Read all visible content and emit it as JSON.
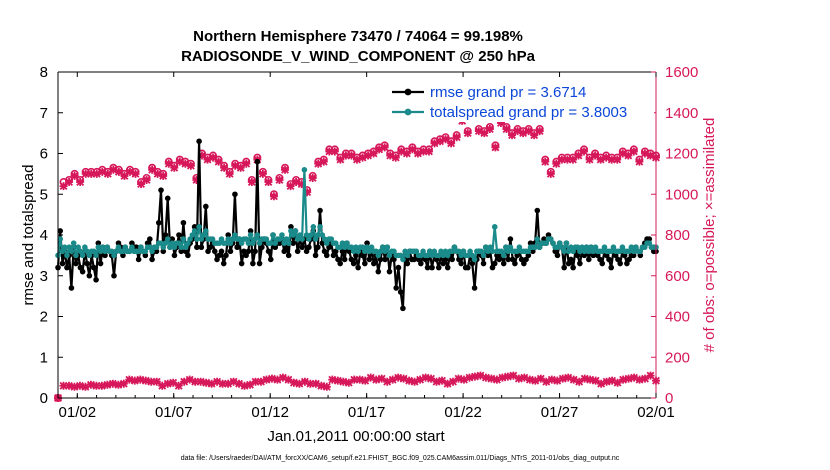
{
  "chart_data": {
    "type": "line",
    "title_line1": "Northern Hemisphere 73470 / 74064 = 99.198%",
    "title_line2": "RADIOSONDE_V_WIND_COMPONENT @ 250 hPa",
    "xlabel": "Jan.01,2011 00:00:00 start",
    "ylabel_left": "rmse and totalspread",
    "ylabel_right": "# of obs: o=possible; ×=assimilated",
    "footnote": "data file: /Users/raeder/DAI/ATM_forcXX/CAM6_setup/f.e21.FHIST_BGC.f09_025.CAM6assim.011/Diags_NTrS_2011-01/obs_diag_output.nc",
    "xlim": [
      0,
      31
    ],
    "ylim_left": [
      0,
      8
    ],
    "ylim_right": [
      0,
      1600
    ],
    "x_ticks": [
      {
        "v": 1,
        "label": "01/02"
      },
      {
        "v": 6,
        "label": "01/07"
      },
      {
        "v": 11,
        "label": "01/12"
      },
      {
        "v": 16,
        "label": "01/17"
      },
      {
        "v": 21,
        "label": "01/22"
      },
      {
        "v": 26,
        "label": "01/27"
      },
      {
        "v": 31,
        "label": "02/01"
      }
    ],
    "y_ticks_left": [
      "0",
      "1",
      "2",
      "3",
      "4",
      "5",
      "6",
      "7",
      "8"
    ],
    "y_ticks_right": [
      "0",
      "200",
      "400",
      "600",
      "800",
      "1000",
      "1200",
      "1400",
      "1600"
    ],
    "legend": [
      {
        "label": "rmse grand pr = 3.6714",
        "color": "#000000"
      },
      {
        "label": "totalspread grand pr = 3.8003",
        "color": "#1a8a8a"
      }
    ],
    "colors": {
      "rmse": "#000000",
      "spread": "#1a8a8a",
      "obs": "#d6185a",
      "axis_right": "#d6185a"
    },
    "series": [
      {
        "name": "rmse",
        "axis": "left",
        "values": [
          3.2,
          4.1,
          3.3,
          3.6,
          3.2,
          3.5,
          2.7,
          3.7,
          3.3,
          3.5,
          3.2,
          3.1,
          3.6,
          3.3,
          3.0,
          3.5,
          3.2,
          2.9,
          3.8,
          3.3,
          3.7,
          3.5,
          3.7,
          3.6,
          3.5,
          3.0,
          3.6,
          3.8,
          3.7,
          3.5,
          3.7,
          3.6,
          3.6,
          3.8,
          3.7,
          3.7,
          3.4,
          3.7,
          3.6,
          3.5,
          3.8,
          3.9,
          3.4,
          3.6,
          3.6,
          4.3,
          5.1,
          3.6,
          4.0,
          4.9,
          3.7,
          3.9,
          3.5,
          3.7,
          4.0,
          3.6,
          4.3,
          3.6,
          3.5,
          3.8,
          3.9,
          4.2,
          3.7,
          6.3,
          3.7,
          3.9,
          4.7,
          3.6,
          3.7,
          3.8,
          3.6,
          3.4,
          3.5,
          3.6,
          3.3,
          3.5,
          4.0,
          3.6,
          3.8,
          5.0,
          3.7,
          3.9,
          3.3,
          3.6,
          3.5,
          3.6,
          4.1,
          3.3,
          3.6,
          5.8,
          3.3,
          3.7,
          3.9,
          3.8,
          3.6,
          3.4,
          4.0,
          3.7,
          3.8,
          3.8,
          3.9,
          3.6,
          3.7,
          3.5,
          4.2,
          3.8,
          4.1,
          3.6,
          3.9,
          3.7,
          3.9,
          3.6,
          3.7,
          3.9,
          4.1,
          3.5,
          3.7,
          4.6,
          3.8,
          3.6,
          3.5,
          3.7,
          3.8,
          3.5,
          3.6,
          3.4,
          3.3,
          3.6,
          3.4,
          3.8,
          3.6,
          3.4,
          3.3,
          3.5,
          3.2,
          3.6,
          3.5,
          3.3,
          3.8,
          3.4,
          3.6,
          3.3,
          3.5,
          3.1,
          3.4,
          3.7,
          3.4,
          3.7,
          3.1,
          3.5,
          3.4,
          2.7,
          3.2,
          2.6,
          2.2,
          3.5,
          3.3,
          3.6,
          3.4,
          3.4,
          3.5,
          3.4,
          3.3,
          3.5,
          3.4,
          3.2,
          3.6,
          3.2,
          3.5,
          3.4,
          3.2,
          3.5,
          3.3,
          3.4,
          3.2,
          3.5,
          3.4,
          3.7,
          3.6,
          3.4,
          3.3,
          3.6,
          3.2,
          3.2,
          3.5,
          3.3,
          2.7,
          3.4,
          3.6,
          3.5,
          3.3,
          3.7,
          3.5,
          3.6,
          3.2,
          3.3,
          3.5,
          3.4,
          3.5,
          3.3,
          3.7,
          3.4,
          3.9,
          3.4,
          3.3,
          3.5,
          3.6,
          3.4,
          3.3,
          3.4,
          3.5,
          3.8,
          3.6,
          3.8,
          4.6,
          3.7,
          3.8,
          3.9,
          3.8,
          4.0,
          3.9,
          3.8,
          3.6,
          3.5,
          3.8,
          3.7,
          3.2,
          3.8,
          3.3,
          3.4,
          3.2,
          3.6,
          3.5,
          3.3,
          3.6,
          3.5,
          3.7,
          3.4,
          3.7,
          3.5,
          3.6,
          3.5,
          3.4,
          3.3,
          3.6,
          3.5,
          3.4,
          3.2,
          3.6,
          3.5,
          3.4,
          3.3,
          3.6,
          3.5,
          3.3,
          3.4,
          3.5,
          3.5,
          3.7,
          3.6,
          3.5,
          3.7,
          3.8,
          3.9,
          3.9,
          3.7,
          3.6,
          3.6
        ]
      },
      {
        "name": "totalspread",
        "axis": "left",
        "values": [
          3.5,
          3.9,
          3.6,
          3.7,
          3.5,
          3.7,
          3.6,
          3.8,
          3.5,
          3.7,
          3.6,
          3.5,
          3.7,
          3.6,
          3.5,
          3.6,
          3.6,
          3.5,
          3.7,
          3.6,
          3.7,
          3.6,
          3.7,
          3.6,
          3.6,
          3.5,
          3.6,
          3.7,
          3.6,
          3.6,
          3.7,
          3.6,
          3.6,
          3.7,
          3.6,
          3.6,
          3.6,
          3.7,
          3.6,
          3.6,
          3.7,
          3.7,
          3.6,
          3.7,
          3.7,
          3.8,
          3.8,
          3.7,
          3.8,
          3.9,
          3.7,
          3.8,
          3.7,
          3.8,
          3.8,
          3.7,
          3.9,
          3.7,
          3.8,
          3.9,
          4.0,
          4.1,
          3.9,
          4.2,
          3.9,
          4.0,
          4.1,
          3.9,
          3.9,
          3.9,
          3.8,
          3.8,
          3.8,
          3.9,
          3.8,
          3.8,
          3.9,
          3.8,
          3.9,
          4.0,
          3.9,
          3.9,
          3.8,
          3.9,
          3.9,
          3.8,
          4.0,
          3.8,
          3.9,
          4.0,
          3.8,
          3.9,
          3.9,
          3.9,
          3.8,
          3.8,
          4.0,
          3.8,
          3.9,
          3.9,
          4.0,
          3.8,
          3.9,
          3.8,
          4.1,
          4.0,
          4.1,
          3.9,
          4.0,
          3.9,
          5.6,
          4.0,
          3.9,
          4.0,
          4.2,
          3.9,
          4.0,
          4.2,
          4.0,
          3.9,
          3.8,
          3.9,
          3.9,
          3.8,
          3.8,
          3.7,
          3.7,
          3.8,
          3.7,
          3.8,
          3.7,
          3.7,
          3.6,
          3.7,
          3.6,
          3.7,
          3.7,
          3.6,
          3.7,
          3.6,
          3.7,
          3.6,
          3.6,
          3.5,
          3.6,
          3.7,
          3.6,
          3.7,
          3.5,
          3.6,
          3.6,
          3.5,
          3.5,
          3.5,
          3.4,
          3.6,
          3.5,
          3.6,
          3.6,
          3.6,
          3.6,
          3.5,
          3.5,
          3.6,
          3.5,
          3.5,
          3.6,
          3.5,
          3.6,
          3.5,
          3.5,
          3.6,
          3.5,
          3.6,
          3.5,
          3.6,
          3.6,
          3.7,
          3.6,
          3.6,
          3.5,
          3.6,
          3.5,
          3.5,
          3.6,
          3.5,
          3.4,
          3.6,
          3.6,
          3.6,
          3.5,
          3.7,
          3.6,
          3.7,
          3.6,
          4.2,
          3.6,
          3.6,
          3.6,
          3.5,
          3.7,
          3.6,
          3.7,
          3.6,
          3.6,
          3.6,
          3.7,
          3.6,
          3.6,
          3.6,
          3.6,
          3.7,
          3.7,
          3.7,
          3.9,
          3.7,
          3.8,
          3.8,
          3.8,
          3.9,
          3.9,
          3.8,
          3.7,
          3.7,
          3.8,
          3.7,
          3.6,
          3.8,
          3.6,
          3.7,
          3.6,
          3.7,
          3.7,
          3.6,
          3.7,
          3.6,
          3.7,
          3.6,
          3.7,
          3.6,
          3.7,
          3.6,
          3.6,
          3.6,
          3.7,
          3.6,
          3.6,
          3.6,
          3.7,
          3.6,
          3.6,
          3.6,
          3.7,
          3.6,
          3.6,
          3.6,
          3.7,
          3.6,
          3.7,
          3.6,
          3.6,
          3.7,
          3.7,
          3.8,
          3.8,
          3.7,
          3.7,
          3.7
        ]
      },
      {
        "name": "possible_obs",
        "axis": "right",
        "marker": "o",
        "values": [
          0,
          1060,
          1070,
          1100,
          1070,
          1110,
          1110,
          1110,
          1120,
          1110,
          1130,
          1120,
          1100,
          1120,
          1110,
          1060,
          1080,
          1130,
          1110,
          1100,
          1160,
          1140,
          1170,
          1160,
          1150,
          1080,
          1200,
          1180,
          1190,
          1170,
          1140,
          1110,
          1150,
          1140,
          1160,
          1070,
          1180,
          1110,
          1070,
          1000,
          1080,
          1130,
          1050,
          1070,
          1060,
          1020,
          1090,
          1160,
          1170,
          1220,
          1220,
          1180,
          1200,
          1200,
          1180,
          1190,
          1200,
          1210,
          1230,
          1240,
          1200,
          1190,
          1220,
          1210,
          1230,
          1210,
          1220,
          1220,
          1260,
          1270,
          1280,
          1260,
          1290,
          1370,
          1310,
          1390,
          1320,
          1310,
          1330,
          1240,
          1360,
          1330,
          1300,
          1320,
          1310,
          1320,
          1300,
          1320,
          1170,
          1110,
          1160,
          1180,
          1180,
          1180,
          1200,
          1220,
          1180,
          1200,
          1180,
          1190,
          1180,
          1180,
          1210,
          1200,
          1220,
          1170,
          1210,
          1200,
          1190
        ]
      },
      {
        "name": "assimilated_obs",
        "axis": "right",
        "marker": "x",
        "values": [
          0,
          1040,
          1060,
          1090,
          1060,
          1100,
          1100,
          1100,
          1110,
          1100,
          1120,
          1110,
          1090,
          1110,
          1100,
          1050,
          1070,
          1120,
          1100,
          1090,
          1150,
          1130,
          1160,
          1150,
          1140,
          1070,
          1190,
          1170,
          1180,
          1160,
          1130,
          1100,
          1140,
          1130,
          1150,
          1060,
          1170,
          1100,
          1060,
          990,
          1070,
          1120,
          1040,
          1060,
          1050,
          1010,
          1080,
          1150,
          1160,
          1210,
          1210,
          1170,
          1190,
          1190,
          1170,
          1180,
          1190,
          1200,
          1220,
          1230,
          1190,
          1180,
          1210,
          1200,
          1220,
          1200,
          1210,
          1210,
          1250,
          1260,
          1270,
          1250,
          1280,
          1360,
          1300,
          1380,
          1310,
          1300,
          1320,
          1230,
          1350,
          1320,
          1290,
          1310,
          1300,
          1310,
          1290,
          1310,
          1160,
          1100,
          1150,
          1170,
          1170,
          1170,
          1190,
          1210,
          1170,
          1190,
          1170,
          1180,
          1170,
          1170,
          1200,
          1190,
          1210,
          1160,
          1200,
          1190,
          1180
        ]
      },
      {
        "name": "bottom_obs",
        "axis": "right",
        "marker": "x",
        "values": [
          0,
          60,
          60,
          55,
          60,
          55,
          65,
          60,
          60,
          65,
          70,
          65,
          70,
          90,
          85,
          90,
          85,
          80,
          80,
          60,
          70,
          75,
          60,
          80,
          90,
          80,
          80,
          75,
          70,
          80,
          70,
          70,
          80,
          70,
          60,
          65,
          80,
          80,
          90,
          95,
          90,
          100,
          90,
          75,
          70,
          80,
          70,
          70,
          60,
          55,
          90,
          85,
          80,
          75,
          90,
          90,
          85,
          100,
          90,
          95,
          80,
          90,
          100,
          95,
          85,
          80,
          90,
          100,
          95,
          80,
          85,
          70,
          80,
          95,
          90,
          100,
          105,
          110,
          100,
          95,
          90,
          100,
          105,
          110,
          95,
          100,
          90,
          85,
          95,
          80,
          90,
          85,
          95,
          100,
          90,
          80,
          95,
          90,
          85,
          70,
          80,
          85,
          75,
          90,
          95,
          100,
          90,
          95,
          110,
          85
        ]
      }
    ]
  }
}
